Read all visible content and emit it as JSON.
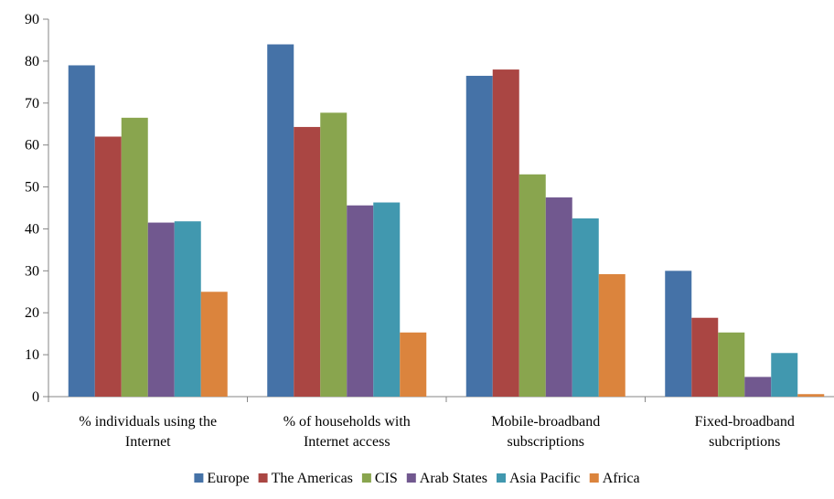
{
  "chart_data": {
    "type": "bar",
    "categories": [
      [
        "% individuals using the",
        "Internet"
      ],
      [
        "% of households with",
        "Internet access"
      ],
      [
        "Mobile-broadband",
        "subscriptions"
      ],
      [
        "Fixed-broadband",
        "subcriptions"
      ]
    ],
    "series": [
      {
        "name": "Europe",
        "color": "#4572A7",
        "values": [
          79,
          84,
          76.5,
          30
        ]
      },
      {
        "name": "The Americas",
        "color": "#AA4643",
        "values": [
          62,
          64.3,
          78,
          18.8
        ]
      },
      {
        "name": "CIS",
        "color": "#89A54E",
        "values": [
          66.5,
          67.7,
          53,
          15.3
        ]
      },
      {
        "name": "Arab States",
        "color": "#71588F",
        "values": [
          41.5,
          45.6,
          47.5,
          4.7
        ]
      },
      {
        "name": "Asia Pacific",
        "color": "#4198AF",
        "values": [
          41.8,
          46.3,
          42.5,
          10.4
        ]
      },
      {
        "name": "Africa",
        "color": "#DB843D",
        "values": [
          25,
          15.3,
          29.2,
          0.6
        ]
      }
    ],
    "y_ticks": [
      "0",
      "10",
      "20",
      "30",
      "40",
      "50",
      "60",
      "70",
      "80",
      "90"
    ],
    "ylim": [
      0,
      90
    ],
    "title": "",
    "xlabel": "",
    "ylabel": "",
    "legend_position": "bottom",
    "grid": false
  }
}
